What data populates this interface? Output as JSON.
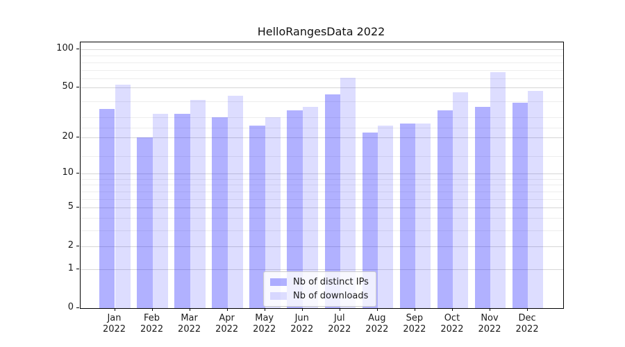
{
  "title": "HelloRangesData 2022",
  "colors": {
    "ips_bar": "rgba(26,26,255,0.34)",
    "downloads_bar": "rgba(26,26,255,0.15)",
    "major_grid": "#d6d6d6",
    "minor_grid": "#ededed",
    "axis": "#000000",
    "text": "#1a1a1a"
  },
  "chart_data": {
    "type": "bar",
    "title": "HelloRangesData 2022",
    "categories": [
      "Jan 2022",
      "Feb 2022",
      "Mar 2022",
      "Apr 2022",
      "May 2022",
      "Jun 2022",
      "Jul 2022",
      "Aug 2022",
      "Sep 2022",
      "Oct 2022",
      "Nov 2022",
      "Dec 2022"
    ],
    "series": [
      {
        "name": "Nb of distinct IPs",
        "values": [
          34,
          20,
          31,
          29,
          25,
          33,
          44,
          22,
          26,
          33,
          35,
          38
        ]
      },
      {
        "name": "Nb of downloads",
        "values": [
          53,
          31,
          40,
          43,
          29,
          35,
          60,
          25,
          26,
          46,
          66,
          47
        ]
      }
    ],
    "xlabel": "",
    "ylabel": "",
    "yscale": "log1p",
    "yticks": [
      0,
      1,
      2,
      5,
      10,
      20,
      50,
      100
    ],
    "minor_yticks": [
      3,
      4,
      6,
      7,
      8,
      9,
      14,
      24,
      29,
      39,
      59,
      69,
      79,
      89
    ],
    "ylim": [
      0,
      113
    ],
    "grid": true,
    "legend_position": "lower center"
  }
}
